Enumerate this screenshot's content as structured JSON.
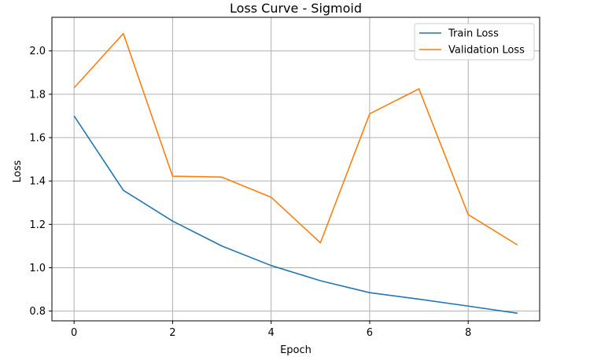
{
  "chart_data": {
    "type": "line",
    "title": "Loss Curve - Sigmoid",
    "xlabel": "Epoch",
    "ylabel": "Loss",
    "x": [
      0,
      1,
      2,
      3,
      4,
      5,
      6,
      7,
      8,
      9
    ],
    "xlim": [
      -0.45,
      9.45
    ],
    "ylim": [
      0.755,
      2.155
    ],
    "xticks": [
      0,
      2,
      4,
      6,
      8
    ],
    "yticks": [
      0.8,
      1.0,
      1.2,
      1.4,
      1.6,
      1.8,
      2.0
    ],
    "grid": true,
    "legend_position": "top-right",
    "series": [
      {
        "name": "Train Loss",
        "color": "#1f77b4",
        "values": [
          1.7,
          1.357,
          1.215,
          1.1,
          1.01,
          0.94,
          0.885,
          0.855,
          0.823,
          0.79
        ]
      },
      {
        "name": "Validation Loss",
        "color": "#ff7f0e",
        "values": [
          1.83,
          2.08,
          1.422,
          1.418,
          1.325,
          1.115,
          1.71,
          1.825,
          1.245,
          1.105
        ]
      }
    ]
  }
}
